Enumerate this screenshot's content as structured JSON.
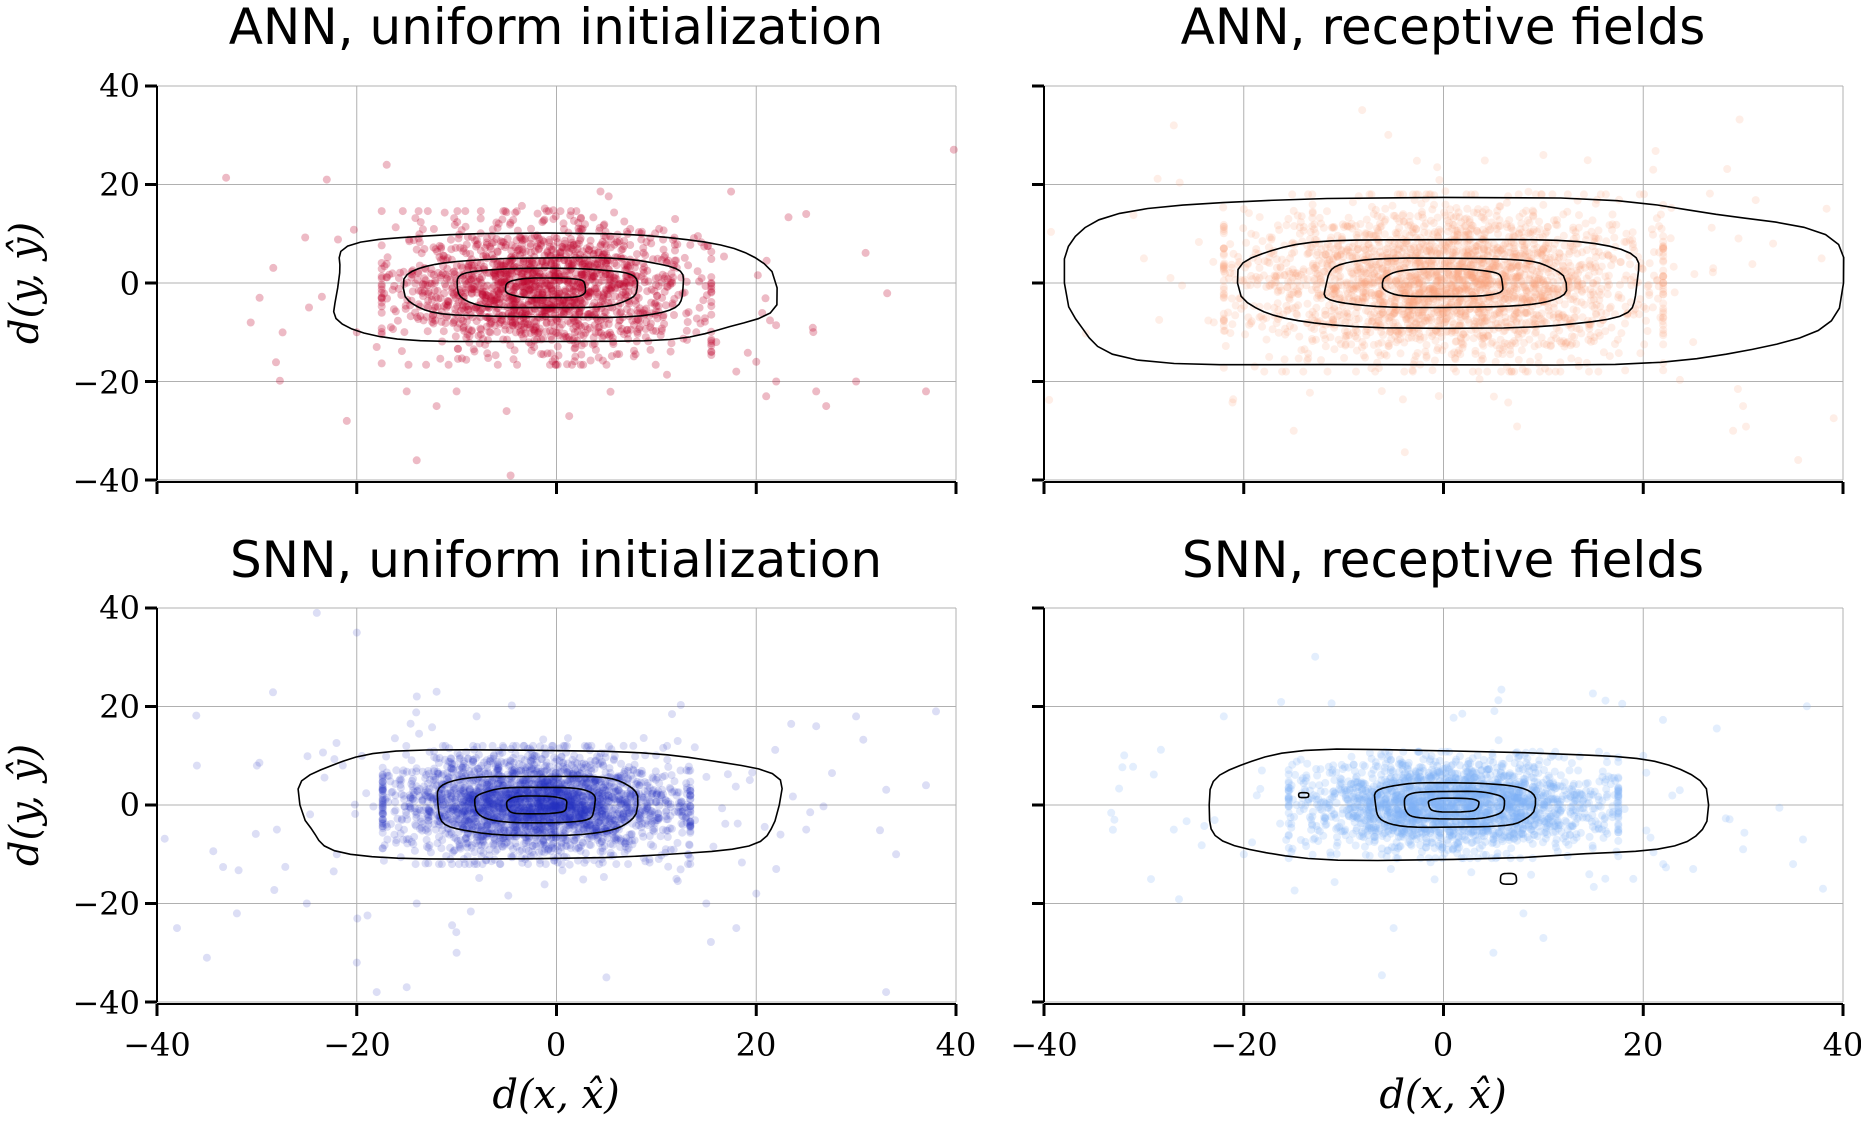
{
  "chart_data": [
    {
      "type": "scatter",
      "title": "ANN, uniform initialization",
      "xlabel": "",
      "ylabel": "d(y, ŷ)",
      "xlim": [
        -40,
        40
      ],
      "ylim": [
        -40,
        40
      ],
      "xticks": [
        -40,
        -20,
        0,
        20,
        40
      ],
      "yticks": [
        -40,
        -20,
        0,
        20,
        40
      ],
      "xtick_labels": [
        "",
        "",
        "",
        "",
        ""
      ],
      "ytick_labels": [
        "−40",
        "−20",
        "0",
        "20",
        "40"
      ],
      "grid": true,
      "color": "#c0062e",
      "point_opacity": 0.28,
      "cluster": {
        "center": [
          -1,
          -1
        ],
        "spread": [
          7.5,
          6.5
        ],
        "n": 1600
      },
      "outliers": [
        [
          -23,
          21
        ],
        [
          -17,
          24
        ],
        [
          -14,
          -36
        ],
        [
          -21,
          -28
        ],
        [
          -20,
          -10
        ],
        [
          -15,
          -22
        ],
        [
          -18,
          -13
        ],
        [
          18,
          -18
        ],
        [
          20,
          -16
        ],
        [
          22,
          -20
        ],
        [
          26,
          -22
        ],
        [
          30,
          -20
        ],
        [
          37,
          -22
        ],
        [
          27,
          -25
        ],
        [
          21,
          -23
        ],
        [
          25,
          14
        ],
        [
          14,
          -10
        ],
        [
          16,
          -12
        ],
        [
          -10,
          -22
        ],
        [
          -12,
          -25
        ],
        [
          -5,
          -26
        ]
      ],
      "contours": [
        {
          "center": [
            -1,
            -1
          ],
          "rx": 22,
          "ry": 11
        },
        {
          "center": [
            -1,
            -1
          ],
          "rx": 14,
          "ry": 6
        },
        {
          "center": [
            -1,
            -1
          ],
          "rx": 9,
          "ry": 4
        },
        {
          "center": [
            -1,
            -1
          ],
          "rx": 4,
          "ry": 2
        }
      ]
    },
    {
      "type": "scatter",
      "title": "ANN, receptive fields",
      "xlabel": "",
      "ylabel": "",
      "xlim": [
        -40,
        40
      ],
      "ylim": [
        -40,
        40
      ],
      "xticks": [
        -40,
        -20,
        0,
        20,
        40
      ],
      "yticks": [
        -40,
        -20,
        0,
        20,
        40
      ],
      "xtick_labels": [
        "",
        "",
        "",
        "",
        ""
      ],
      "ytick_labels": [
        "",
        "",
        "",
        "",
        ""
      ],
      "grid": true,
      "color": "#fc9f7c",
      "point_opacity": 0.18,
      "cluster": {
        "center": [
          0,
          0
        ],
        "spread": [
          10,
          7.5
        ],
        "n": 2600
      },
      "outliers": [
        [
          -27,
          32
        ],
        [
          -23,
          -8
        ],
        [
          -30,
          5
        ],
        [
          25,
          -12
        ],
        [
          29,
          -30
        ],
        [
          30,
          -25
        ],
        [
          27,
          3
        ],
        [
          -15,
          -30
        ],
        [
          21,
          23
        ],
        [
          10,
          26
        ],
        [
          -20,
          15
        ],
        [
          33,
          8
        ]
      ],
      "contours": [
        {
          "center": [
            0,
            0
          ],
          "rx": 39,
          "ry": 17
        },
        {
          "center": [
            0,
            0
          ],
          "rx": 20,
          "ry": 9
        },
        {
          "center": [
            0,
            0
          ],
          "rx": 12,
          "ry": 5
        },
        {
          "center": [
            0,
            0
          ],
          "rx": 6,
          "ry": 2.8
        }
      ]
    },
    {
      "type": "scatter",
      "title": "SNN, uniform initialization",
      "xlabel": "d(x, x̂)",
      "ylabel": "d(y, ŷ)",
      "xlim": [
        -40,
        40
      ],
      "ylim": [
        -40,
        40
      ],
      "xticks": [
        -40,
        -20,
        0,
        20,
        40
      ],
      "yticks": [
        -40,
        -20,
        0,
        20,
        40
      ],
      "xtick_labels": [
        "−40",
        "−20",
        "0",
        "20",
        "40"
      ],
      "ytick_labels": [
        "−40",
        "−20",
        "0",
        "20",
        "40"
      ],
      "grid": true,
      "color": "#2430c0",
      "point_opacity": 0.16,
      "cluster": {
        "center": [
          -2,
          0
        ],
        "spread": [
          7,
          5
        ],
        "n": 2800
      },
      "outliers": [
        [
          -24,
          39
        ],
        [
          -20,
          35
        ],
        [
          -36,
          8
        ],
        [
          -30,
          8
        ],
        [
          -38,
          -25
        ],
        [
          -35,
          -31
        ],
        [
          -28,
          -5
        ],
        [
          -22,
          -10
        ],
        [
          -20,
          -32
        ],
        [
          -18,
          -38
        ],
        [
          -15,
          -37
        ],
        [
          -10,
          -30
        ],
        [
          20,
          -18
        ],
        [
          22,
          -13
        ],
        [
          26,
          16
        ],
        [
          30,
          18
        ],
        [
          34,
          -10
        ],
        [
          37,
          4
        ],
        [
          38,
          19
        ],
        [
          33,
          -38
        ],
        [
          15,
          -20
        ],
        [
          18,
          -25
        ],
        [
          -12,
          23
        ],
        [
          -8,
          18
        ],
        [
          12,
          -15
        ],
        [
          -14,
          -20
        ],
        [
          5,
          -35
        ],
        [
          25,
          -5
        ],
        [
          -25,
          -20
        ],
        [
          -32,
          -22
        ]
      ],
      "contours": [
        {
          "center": [
            -2,
            0
          ],
          "rx": 24,
          "ry": 11
        },
        {
          "center": [
            -2,
            0
          ],
          "rx": 10,
          "ry": 6
        },
        {
          "center": [
            -2,
            0
          ],
          "rx": 6,
          "ry": 3.6
        },
        {
          "center": [
            -2,
            0
          ],
          "rx": 3,
          "ry": 1.8
        }
      ]
    },
    {
      "type": "scatter",
      "title": "SNN, receptive fields",
      "xlabel": "d(x, x̂)",
      "ylabel": "",
      "xlim": [
        -40,
        40
      ],
      "ylim": [
        -40,
        40
      ],
      "xticks": [
        -40,
        -20,
        0,
        20,
        40
      ],
      "yticks": [
        -40,
        -20,
        0,
        20,
        40
      ],
      "xtick_labels": [
        "−40",
        "−20",
        "0",
        "20",
        "40"
      ],
      "ytick_labels": [
        "",
        "",
        "",
        "",
        ""
      ],
      "grid": true,
      "color": "#7fb0f5",
      "point_opacity": 0.22,
      "cluster": {
        "center": [
          1,
          0
        ],
        "spread": [
          7.5,
          4.5
        ],
        "n": 2200
      },
      "outliers": [
        [
          -22,
          18
        ],
        [
          -20,
          -10
        ],
        [
          -13,
          2
        ],
        [
          20,
          10
        ],
        [
          22,
          -12
        ],
        [
          25,
          -13
        ],
        [
          35,
          -12
        ],
        [
          38,
          -17
        ],
        [
          36,
          -7
        ],
        [
          5,
          -30
        ],
        [
          8,
          -22
        ],
        [
          -5,
          -25
        ],
        [
          10,
          -27
        ],
        [
          30,
          -9
        ],
        [
          -27,
          -5
        ],
        [
          19,
          -15
        ]
      ],
      "contours": [
        {
          "center": [
            1,
            0
          ],
          "rx": 25,
          "ry": 11
        },
        {
          "center": [
            1,
            0
          ],
          "rx": 8,
          "ry": 4.5
        },
        {
          "center": [
            1,
            0
          ],
          "rx": 5,
          "ry": 2.8
        },
        {
          "center": [
            1,
            0
          ],
          "rx": 2.5,
          "ry": 1.4
        }
      ],
      "extra_contours": [
        {
          "center": [
            -14,
            2
          ],
          "rx": 0.5,
          "ry": 0.5
        },
        {
          "center": [
            6.5,
            -15
          ],
          "rx": 0.8,
          "ry": 1.1
        }
      ]
    }
  ]
}
